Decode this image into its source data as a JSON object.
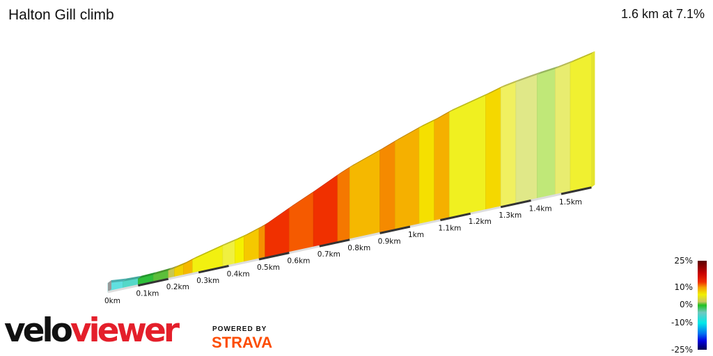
{
  "header": {
    "title": "Halton Gill climb",
    "summary": "1.6 km at 7.1%"
  },
  "legend": {
    "labels": [
      "25%",
      "10%",
      "0%",
      "-10%",
      "-25%"
    ]
  },
  "branding": {
    "velo": "velo",
    "viewer": "viewer",
    "powered_by": "POWERED BY",
    "strava": "STRAVA"
  },
  "chart_data": {
    "type": "area",
    "title": "Halton Gill climb",
    "xlabel": "",
    "ylabel": "",
    "x_unit": "km",
    "xlim": [
      0,
      1.6
    ],
    "tick_labels": [
      "0km",
      "0.1km",
      "0.2km",
      "0.3km",
      "0.4km",
      "0.5km",
      "0.6km",
      "0.7km",
      "0.8km",
      "0.9km",
      "1km",
      "1.1km",
      "1.2km",
      "1.3km",
      "1.4km",
      "1.5km"
    ],
    "segments": [
      {
        "from": 0,
        "to": 0.05,
        "gradient": -3,
        "color": "#60e0e0"
      },
      {
        "from": 0.05,
        "to": 0.1,
        "gradient": -1,
        "color": "#55d8c8"
      },
      {
        "from": 0.1,
        "to": 0.15,
        "gradient": 1,
        "color": "#2ebf3a"
      },
      {
        "from": 0.15,
        "to": 0.2,
        "gradient": 2,
        "color": "#5cbf3a"
      },
      {
        "from": 0.2,
        "to": 0.22,
        "gradient": 4,
        "color": "#c8c850"
      },
      {
        "from": 0.22,
        "to": 0.25,
        "gradient": 6,
        "color": "#f0d000"
      },
      {
        "from": 0.25,
        "to": 0.28,
        "gradient": 9,
        "color": "#f5b800"
      },
      {
        "from": 0.28,
        "to": 0.38,
        "gradient": 7,
        "color": "#f2f010"
      },
      {
        "from": 0.38,
        "to": 0.42,
        "gradient": 6,
        "color": "#f0f040"
      },
      {
        "from": 0.42,
        "to": 0.45,
        "gradient": 7,
        "color": "#f5f000"
      },
      {
        "from": 0.45,
        "to": 0.5,
        "gradient": 9,
        "color": "#f5c800"
      },
      {
        "from": 0.5,
        "to": 0.52,
        "gradient": 11,
        "color": "#f59000"
      },
      {
        "from": 0.52,
        "to": 0.6,
        "gradient": 14,
        "color": "#f03000"
      },
      {
        "from": 0.6,
        "to": 0.68,
        "gradient": 13,
        "color": "#f55a00"
      },
      {
        "from": 0.68,
        "to": 0.76,
        "gradient": 14,
        "color": "#f03000"
      },
      {
        "from": 0.76,
        "to": 0.8,
        "gradient": 12,
        "color": "#f57800"
      },
      {
        "from": 0.8,
        "to": 0.9,
        "gradient": 10,
        "color": "#f5b800"
      },
      {
        "from": 0.9,
        "to": 0.95,
        "gradient": 11,
        "color": "#f58a00"
      },
      {
        "from": 0.95,
        "to": 1.03,
        "gradient": 10,
        "color": "#f5b000"
      },
      {
        "from": 1.03,
        "to": 1.08,
        "gradient": 8,
        "color": "#f5e000"
      },
      {
        "from": 1.08,
        "to": 1.13,
        "gradient": 10,
        "color": "#f5b000"
      },
      {
        "from": 1.13,
        "to": 1.25,
        "gradient": 7,
        "color": "#f0f020"
      },
      {
        "from": 1.25,
        "to": 1.3,
        "gradient": 8,
        "color": "#f5d800"
      },
      {
        "from": 1.3,
        "to": 1.35,
        "gradient": 5,
        "color": "#f0f060"
      },
      {
        "from": 1.35,
        "to": 1.42,
        "gradient": 4,
        "color": "#e0e888"
      },
      {
        "from": 1.42,
        "to": 1.48,
        "gradient": 3,
        "color": "#c0e878"
      },
      {
        "from": 1.48,
        "to": 1.53,
        "gradient": 5,
        "color": "#e8ec70"
      },
      {
        "from": 1.53,
        "to": 1.6,
        "gradient": 6,
        "color": "#f0f030"
      }
    ],
    "colorscale": {
      "range": [
        -25,
        25
      ],
      "stops": [
        {
          "v": 25,
          "c": "#5a0000"
        },
        {
          "v": 18,
          "c": "#c80000"
        },
        {
          "v": 13,
          "c": "#f03000"
        },
        {
          "v": 10,
          "c": "#f5a000"
        },
        {
          "v": 6,
          "c": "#f0f000"
        },
        {
          "v": 2,
          "c": "#c8c860"
        },
        {
          "v": 0,
          "c": "#20c020"
        },
        {
          "v": -4,
          "c": "#70c8c0"
        },
        {
          "v": -10,
          "c": "#00e8e8"
        },
        {
          "v": -16,
          "c": "#0070f0"
        },
        {
          "v": -20,
          "c": "#0000e0"
        },
        {
          "v": -25,
          "c": "#000050"
        }
      ]
    }
  }
}
